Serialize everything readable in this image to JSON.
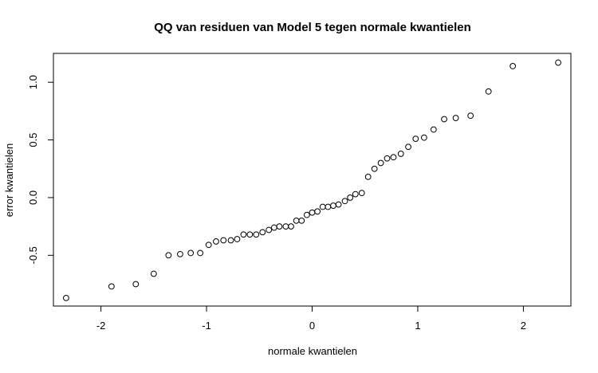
{
  "chart_data": {
    "type": "scatter",
    "title": "QQ van residuen van Model 5 tegen normale kwantielen",
    "xlabel": "normale kwantielen",
    "ylabel": "error kwantielen",
    "xlim": [
      -2.45,
      2.45
    ],
    "ylim": [
      -0.94,
      1.25
    ],
    "xticks": [
      -2,
      -1,
      0,
      1,
      2
    ],
    "xtick_labels": [
      "-2",
      "-1",
      "0",
      "1",
      "2"
    ],
    "yticks": [
      -0.5,
      0.0,
      0.5,
      1.0
    ],
    "ytick_labels": [
      "-0.5",
      "0.0",
      "0.5",
      "1.0"
    ],
    "grid": false,
    "marker": "open-circle",
    "color": "#000000",
    "points": [
      {
        "x": -2.33,
        "y": -0.87
      },
      {
        "x": -1.9,
        "y": -0.77
      },
      {
        "x": -1.67,
        "y": -0.75
      },
      {
        "x": -1.5,
        "y": -0.66
      },
      {
        "x": -1.36,
        "y": -0.5
      },
      {
        "x": -1.25,
        "y": -0.49
      },
      {
        "x": -1.15,
        "y": -0.48
      },
      {
        "x": -1.06,
        "y": -0.48
      },
      {
        "x": -0.98,
        "y": -0.41
      },
      {
        "x": -0.91,
        "y": -0.38
      },
      {
        "x": -0.84,
        "y": -0.37
      },
      {
        "x": -0.77,
        "y": -0.37
      },
      {
        "x": -0.71,
        "y": -0.36
      },
      {
        "x": -0.65,
        "y": -0.32
      },
      {
        "x": -0.59,
        "y": -0.32
      },
      {
        "x": -0.53,
        "y": -0.32
      },
      {
        "x": -0.47,
        "y": -0.3
      },
      {
        "x": -0.41,
        "y": -0.28
      },
      {
        "x": -0.36,
        "y": -0.26
      },
      {
        "x": -0.31,
        "y": -0.25
      },
      {
        "x": -0.25,
        "y": -0.25
      },
      {
        "x": -0.2,
        "y": -0.25
      },
      {
        "x": -0.15,
        "y": -0.2
      },
      {
        "x": -0.1,
        "y": -0.2
      },
      {
        "x": -0.05,
        "y": -0.15
      },
      {
        "x": 0.0,
        "y": -0.13
      },
      {
        "x": 0.05,
        "y": -0.12
      },
      {
        "x": 0.1,
        "y": -0.08
      },
      {
        "x": 0.15,
        "y": -0.08
      },
      {
        "x": 0.2,
        "y": -0.07
      },
      {
        "x": 0.25,
        "y": -0.06
      },
      {
        "x": 0.31,
        "y": -0.03
      },
      {
        "x": 0.36,
        "y": 0.0
      },
      {
        "x": 0.41,
        "y": 0.03
      },
      {
        "x": 0.47,
        "y": 0.04
      },
      {
        "x": 0.53,
        "y": 0.18
      },
      {
        "x": 0.59,
        "y": 0.25
      },
      {
        "x": 0.65,
        "y": 0.3
      },
      {
        "x": 0.71,
        "y": 0.34
      },
      {
        "x": 0.77,
        "y": 0.35
      },
      {
        "x": 0.84,
        "y": 0.38
      },
      {
        "x": 0.91,
        "y": 0.44
      },
      {
        "x": 0.98,
        "y": 0.51
      },
      {
        "x": 1.06,
        "y": 0.52
      },
      {
        "x": 1.15,
        "y": 0.59
      },
      {
        "x": 1.25,
        "y": 0.68
      },
      {
        "x": 1.36,
        "y": 0.69
      },
      {
        "x": 1.5,
        "y": 0.71
      },
      {
        "x": 1.67,
        "y": 0.92
      },
      {
        "x": 1.9,
        "y": 1.14
      },
      {
        "x": 2.33,
        "y": 1.17
      }
    ]
  }
}
